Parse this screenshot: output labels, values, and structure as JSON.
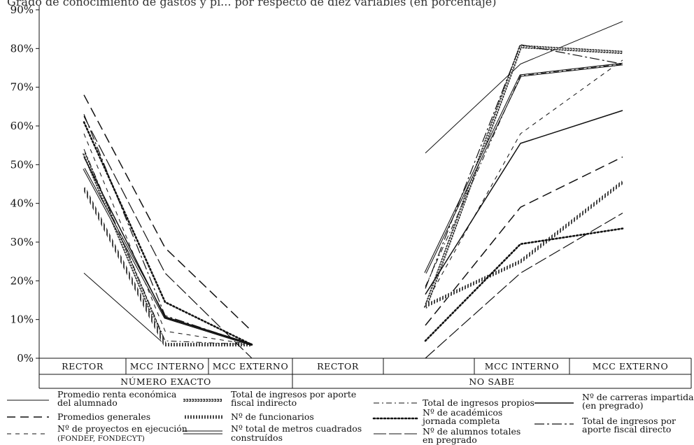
{
  "chart_data": {
    "type": "line",
    "title": "Grado de conocimiento de gastos y pi... por respecto de diez variables (en porcentaje)",
    "ylim": [
      0,
      90
    ],
    "yticks": [
      "0%",
      "10%",
      "20%",
      "30%",
      "40%",
      "50%",
      "60%",
      "70%",
      "80%",
      "90%"
    ],
    "categories": [
      "RECTOR",
      "MCC INTERNO",
      "MCC EXTERNO",
      "RECTOR",
      "MCC INTERNO",
      "MCC EXTERNO"
    ],
    "groups": [
      {
        "label": "NÚMERO EXACTO",
        "categories": [
          0,
          1,
          2
        ]
      },
      {
        "label": "NO SABE",
        "categories": [
          3,
          4,
          5
        ]
      }
    ],
    "grid": false,
    "legend_position": "bottom",
    "series": [
      {
        "name": "Promedio renta económica del alumnado",
        "style": "thin-solid",
        "values": [
          22,
          3.5,
          3.5,
          53,
          76,
          87
        ]
      },
      {
        "name": "Promedios generales",
        "style": "long-dash",
        "values": [
          68,
          28.5,
          7,
          8.5,
          39,
          52
        ]
      },
      {
        "name": "Nº de proyectos en ejecución (FONDEF, FONDECYT)",
        "style": "short-dash",
        "values": [
          58,
          7,
          3.5,
          14,
          58,
          77
        ]
      },
      {
        "name": "Total de ingresos por aporte fiscal indirecto",
        "style": "diamond-chain",
        "values": [
          53,
          3.5,
          3.5,
          13,
          80.5,
          79
        ]
      },
      {
        "name": "Nº de funcionarios",
        "style": "hatched-thick",
        "values": [
          44,
          3.5,
          3.5,
          13.5,
          25,
          45.5
        ]
      },
      {
        "name": "Nº total de metros cuadrados construídos",
        "style": "double-line",
        "values": [
          49,
          10.5,
          3.5,
          22,
          73,
          76
        ]
      },
      {
        "name": "Total de ingresos propios",
        "style": "dash-dot",
        "values": [
          54,
          4.5,
          3.5,
          18.5,
          73,
          76
        ]
      },
      {
        "name": "Nº de académicos jornada completa",
        "style": "dotted-bold",
        "values": [
          61,
          14.5,
          3.5,
          4.5,
          29.5,
          33.5
        ]
      },
      {
        "name": "Nº de alumnos totales en pregrado",
        "style": "long-dash-gap",
        "values": [
          62.5,
          22,
          0,
          0,
          22,
          37.5
        ]
      },
      {
        "name": "Nº de carreras impartidas (en pregrado)",
        "style": "solid-medium",
        "values": [
          52,
          10.5,
          3.5,
          16.5,
          55.5,
          64
        ]
      },
      {
        "name": "Total de ingresos por aporte fiscal directo",
        "style": "long-dash-dot",
        "values": [
          63,
          11,
          3.5,
          18,
          81,
          76
        ]
      }
    ]
  },
  "legend": {
    "l1": "Promedio renta económica",
    "l1b": "del alumnado",
    "l2": "Promedios generales",
    "l3": "Nº de proyectos en ejecución",
    "l3b": "(FONDEF, FONDECYT)",
    "l4": "Total de ingresos por aporte",
    "l4b": "fiscal indirecto",
    "l5": "Nº de funcionarios",
    "l6": "Nº total de metros cuadrados",
    "l6b": "construídos",
    "l7": "Total de ingresos propios",
    "l8": "Nº de académicos",
    "l8b": "jornada completa",
    "l9": "Nº de alumnos totales",
    "l9b": "en pregrado",
    "l10": "Nº de carreras impartidas",
    "l10b": "(en pregrado)",
    "l11": "Total de ingresos por",
    "l11b": "aporte fiscal directo"
  }
}
